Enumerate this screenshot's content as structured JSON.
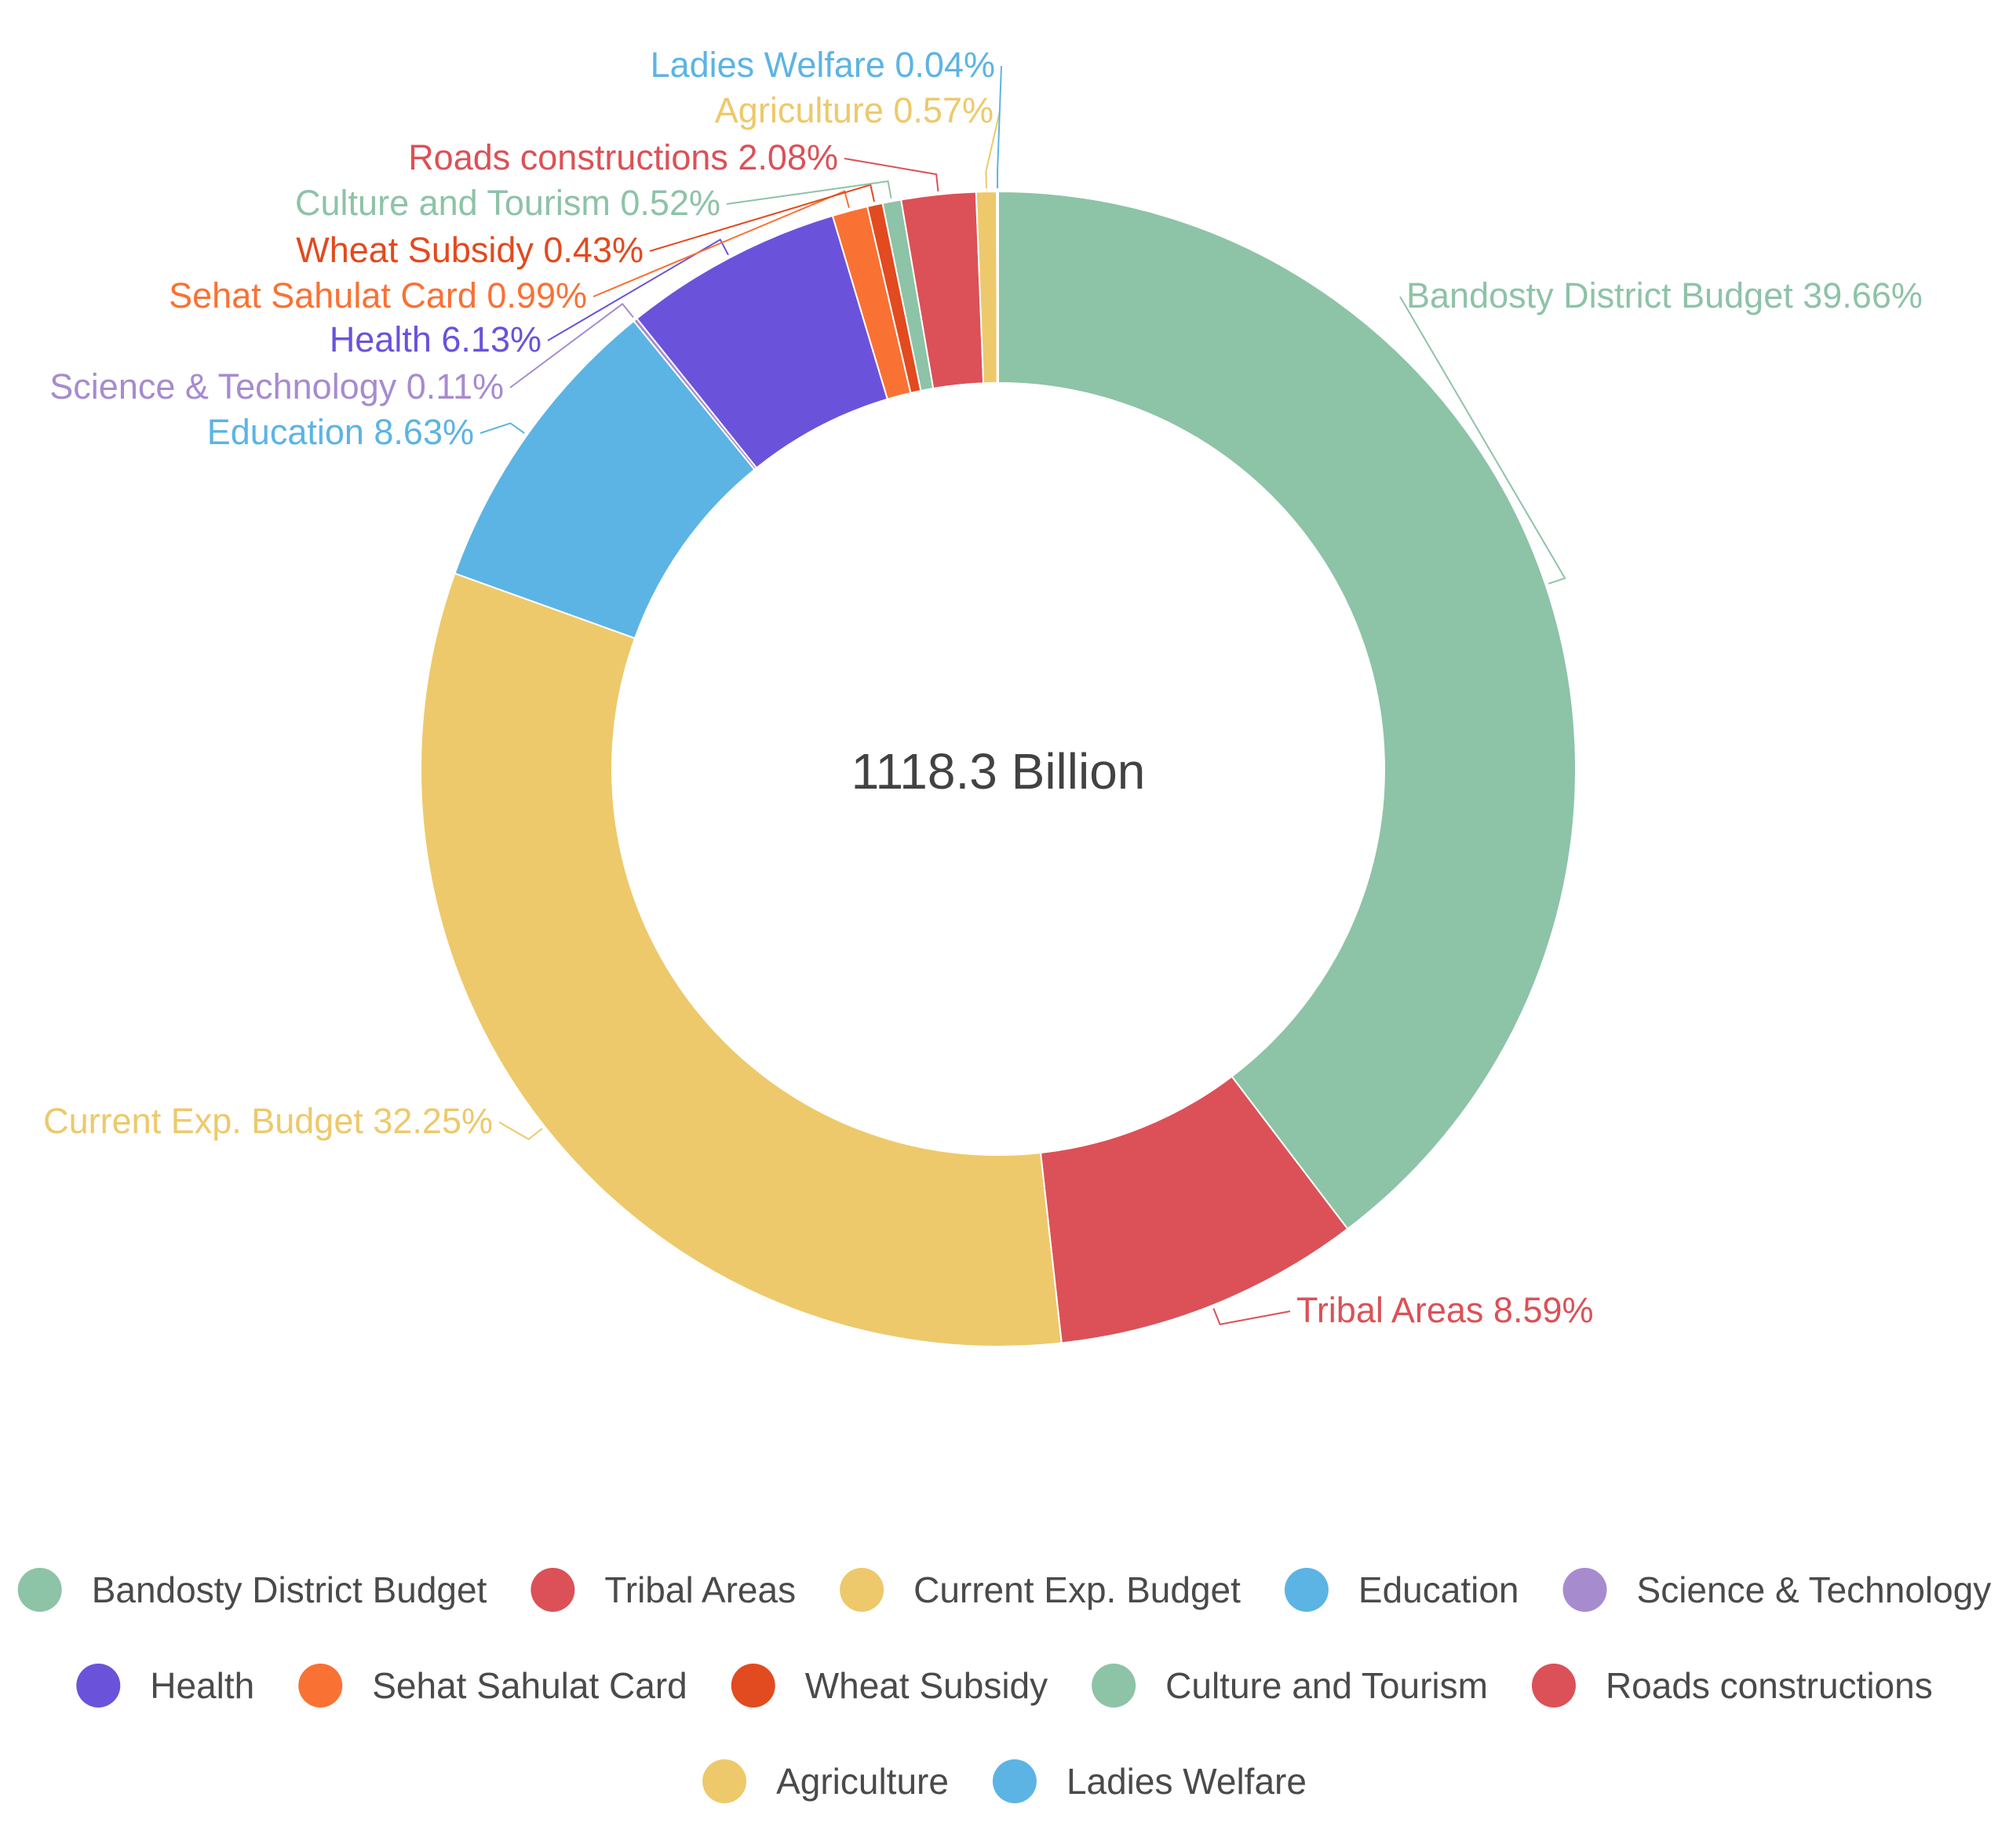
{
  "chart_data": {
    "type": "pie",
    "variant": "donut",
    "center_label": "1118.3 Billion",
    "legend_position": "bottom",
    "slices": [
      {
        "name": "Bandosty District Budget",
        "label": "Bandosty District Budget 39.66%",
        "value": 39.66,
        "color": "#8DC3A7"
      },
      {
        "name": "Tribal Areas",
        "label": "Tribal Areas 8.59%",
        "value": 8.59,
        "color": "#DB5157"
      },
      {
        "name": "Current Exp. Budget",
        "label": "Current Exp. Budget 32.25%",
        "value": 32.25,
        "color": "#EDC96B"
      },
      {
        "name": "Education",
        "label": "Education 8.63%",
        "value": 8.63,
        "color": "#5CB4E4"
      },
      {
        "name": "Science & Technology",
        "label": "Science & Technology  0.11%",
        "value": 0.11,
        "color": "#A78BCF"
      },
      {
        "name": "Health",
        "label": "Health  6.13%",
        "value": 6.13,
        "color": "#6B52DA"
      },
      {
        "name": "Sehat Sahulat Card",
        "label": "Sehat Sahulat Card 0.99%",
        "value": 0.99,
        "color": "#FA7134"
      },
      {
        "name": "Wheat Subsidy",
        "label": "Wheat Subsidy 0.43%",
        "value": 0.43,
        "color": "#E24A1F"
      },
      {
        "name": "Culture and Tourism",
        "label": "Culture and Tourism  0.52%",
        "value": 0.52,
        "color": "#8DC3A7"
      },
      {
        "name": "Roads constructions",
        "label": "Roads constructions  2.08%",
        "value": 2.08,
        "color": "#DB5157"
      },
      {
        "name": "Agriculture",
        "label": "Agriculture 0.57%",
        "value": 0.57,
        "color": "#EDC96B"
      },
      {
        "name": "Ladies Welfare",
        "label": "Ladies Welfare 0.04%",
        "value": 0.04,
        "color": "#5CB4E4"
      }
    ]
  }
}
